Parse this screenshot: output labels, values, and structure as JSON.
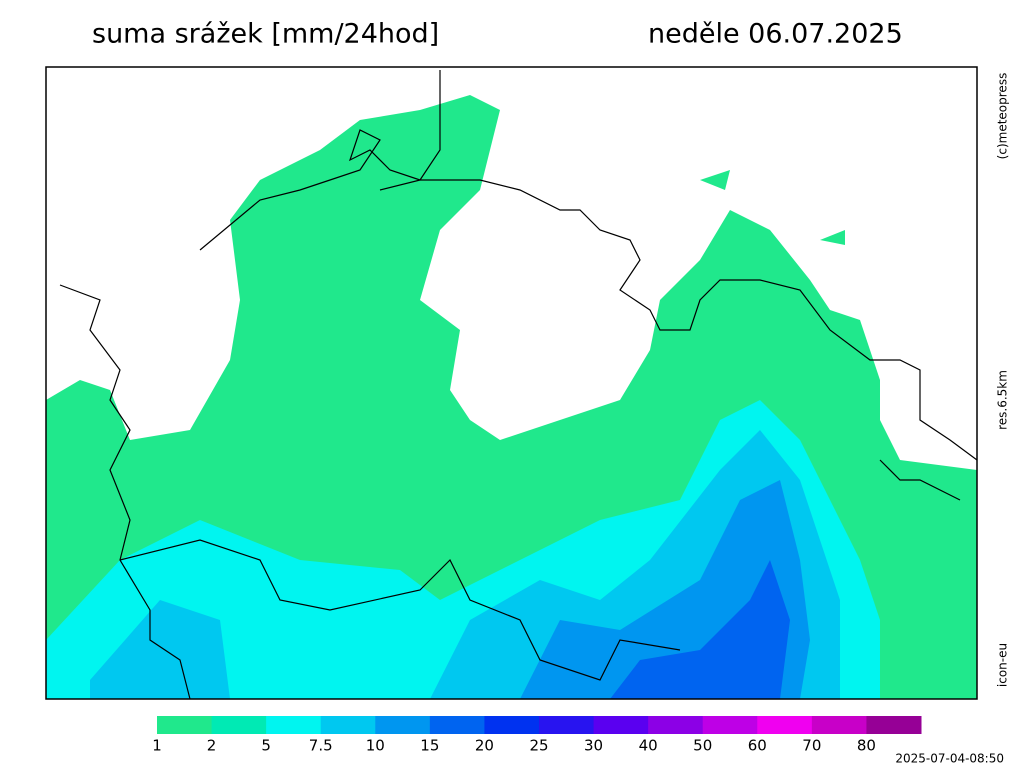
{
  "header": {
    "title": "suma srážek [mm/24hod]",
    "date": "neděle 06.07.2025"
  },
  "side_labels": {
    "copyright": "(c)meteopress",
    "resolution": "res.6.5km",
    "model": "icon-eu"
  },
  "colorbar": [
    {
      "value": 1,
      "color": "#20e88c"
    },
    {
      "value": 2,
      "color": "#00eab4"
    },
    {
      "value": 5,
      "color": "#00f5f0"
    },
    {
      "value": 7.5,
      "color": "#00c8f0"
    },
    {
      "value": 10,
      "color": "#0096f0"
    },
    {
      "value": 15,
      "color": "#0064f0"
    },
    {
      "value": 20,
      "color": "#0032f0"
    },
    {
      "value": 25,
      "color": "#2814f0"
    },
    {
      "value": 30,
      "color": "#5a00f0"
    },
    {
      "value": 40,
      "color": "#8c00e6"
    },
    {
      "value": 50,
      "color": "#be00e6"
    },
    {
      "value": 60,
      "color": "#f000f0"
    },
    {
      "value": 70,
      "color": "#c800c8"
    },
    {
      "value": 80,
      "color": "#960096"
    }
  ],
  "timestamp": "2025-07-04-08:50"
}
